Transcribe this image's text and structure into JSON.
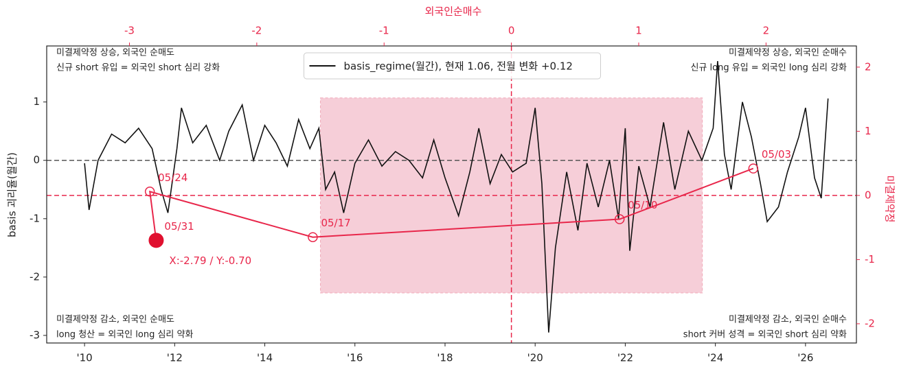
{
  "chart_data": {
    "type": "line",
    "ylabel": "basis 괴리율(월간)",
    "x2label": "외국인순매수",
    "y2label": "미결제약정",
    "legend": "upper center",
    "x": [
      2010.0,
      2010.1,
      2010.3,
      2010.6,
      2010.9,
      2011.2,
      2011.5,
      2011.7,
      2011.85,
      2012.05,
      2012.15,
      2012.4,
      2012.7,
      2013.0,
      2013.2,
      2013.5,
      2013.75,
      2014.0,
      2014.25,
      2014.5,
      2014.75,
      2015.0,
      2015.2,
      2015.35,
      2015.55,
      2015.75,
      2016.0,
      2016.3,
      2016.6,
      2016.9,
      2017.2,
      2017.5,
      2017.75,
      2018.0,
      2018.3,
      2018.55,
      2018.75,
      2019.0,
      2019.25,
      2019.5,
      2019.8,
      2020.0,
      2020.15,
      2020.3,
      2020.45,
      2020.7,
      2020.95,
      2021.15,
      2021.4,
      2021.65,
      2021.85,
      2022.0,
      2022.1,
      2022.3,
      2022.55,
      2022.85,
      2023.1,
      2023.4,
      2023.7,
      2023.95,
      2024.05,
      2024.2,
      2024.35,
      2024.6,
      2024.8,
      2025.0,
      2025.15,
      2025.4,
      2025.6,
      2025.85,
      2026.0,
      2026.2,
      2026.35,
      2026.5
    ],
    "series": [
      {
        "name": "basis_regime(월간), 현재 1.06, 전월 변화 +0.12",
        "color": "#111111",
        "values": [
          -0.05,
          -0.85,
          0.0,
          0.45,
          0.3,
          0.55,
          0.2,
          -0.5,
          -0.9,
          0.2,
          0.9,
          0.3,
          0.6,
          0.0,
          0.5,
          0.95,
          0.0,
          0.6,
          0.3,
          -0.1,
          0.7,
          0.2,
          0.55,
          -0.5,
          -0.2,
          -0.9,
          -0.05,
          0.35,
          -0.1,
          0.15,
          0.0,
          -0.3,
          0.35,
          -0.3,
          -0.95,
          -0.2,
          0.55,
          -0.4,
          0.1,
          -0.2,
          -0.05,
          0.9,
          -0.4,
          -2.95,
          -1.5,
          -0.2,
          -1.2,
          -0.05,
          -0.8,
          0.0,
          -1.0,
          0.55,
          -1.55,
          -0.1,
          -0.8,
          0.65,
          -0.5,
          0.5,
          0.0,
          0.55,
          1.7,
          0.1,
          -0.5,
          1.0,
          0.4,
          -0.4,
          -1.05,
          -0.8,
          -0.2,
          0.4,
          0.9,
          -0.3,
          -0.65,
          1.06
        ]
      }
    ],
    "xlim": [
      2009.16,
      2027.13
    ],
    "xticks": [
      {
        "value": 2010,
        "label": "'10"
      },
      {
        "value": 2012,
        "label": "'12"
      },
      {
        "value": 2014,
        "label": "'14"
      },
      {
        "value": 2016,
        "label": "'16"
      },
      {
        "value": 2018,
        "label": "'18"
      },
      {
        "value": 2020,
        "label": "'20"
      },
      {
        "value": 2022,
        "label": "'22"
      },
      {
        "value": 2024,
        "label": "'24"
      },
      {
        "value": 2026,
        "label": "'26"
      }
    ],
    "ylim": [
      -3.13,
      1.96
    ],
    "yticks": [
      -3,
      -2,
      -1,
      0,
      1
    ],
    "x2lim": [
      -3.65,
      2.71
    ],
    "x2ticks": [
      -3,
      -2,
      -1,
      0,
      1,
      2
    ],
    "y2lim": [
      -2.3,
      2.33
    ],
    "y2ticks": [
      -2,
      -1,
      0,
      1,
      2
    ],
    "reference_lines": [
      {
        "axis": "y",
        "value": 0,
        "color": "#555555"
      },
      {
        "axis": "y2",
        "value": 0,
        "color": "#e8264a"
      },
      {
        "axis": "x2",
        "value": 0,
        "color": "#e8264a"
      }
    ],
    "shaded_region": {
      "x": [
        -1.5,
        1.5
      ],
      "y": [
        -1.52,
        1.52
      ],
      "color": "#f5c6d1"
    },
    "trajectory": {
      "color": "#e8264a",
      "current_color": "#e0102f",
      "x": [
        -2.79,
        -2.84,
        -1.56,
        0.85,
        1.9
      ],
      "y": [
        -0.7,
        0.06,
        -0.65,
        -0.37,
        0.42
      ],
      "labels": [
        "05/31",
        "05/24",
        "05/17",
        "05/10",
        "05/03"
      ],
      "annotation": "X:-2.79 / Y:-0.70"
    },
    "corner_notes": {
      "top_left": [
        "미결제약정 상승, 외국인 순매도",
        "신규 short 유입 = 외국인 short 심리 강화"
      ],
      "top_right": [
        "미결제약정 상승, 외국인 순매수",
        "신규 long 유입 = 외국인 long 심리 강화"
      ],
      "bottom_left": [
        "미결제약정 감소, 외국인 순매도",
        "long 청산 = 외국인 long 심리 약화"
      ],
      "bottom_right": [
        "미결제약정 감소, 외국인 순매수",
        "short 커버 성격 = 외국인 short 심리 약화"
      ]
    }
  }
}
